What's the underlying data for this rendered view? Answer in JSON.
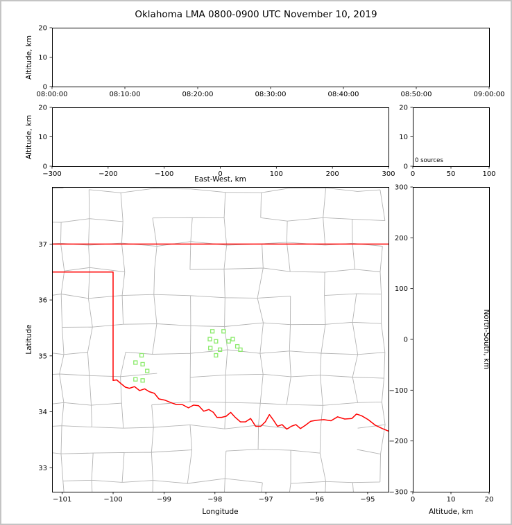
{
  "figure": {
    "title": "Oklahoma LMA 0800-0900 UTC November 10, 2019",
    "background": "#ffffff",
    "frame_color": "#c4c4c4"
  },
  "colors": {
    "axis": "#000000",
    "tick_text": "#000000",
    "county_line": "#b4b4b4",
    "state_border": "#ff0000",
    "station_marker": "#8aea6a"
  },
  "chart_data": [
    {
      "id": "time-height-panel",
      "type": "scatter",
      "ylabel": "Altitude, km",
      "x_tick_labels": [
        "08:00:00",
        "08:10:00",
        "08:20:00",
        "08:30:00",
        "08:40:00",
        "08:50:00",
        "09:00:00"
      ],
      "ylim": [
        0,
        20
      ],
      "y_ticks": [
        0,
        10,
        20
      ],
      "points": []
    },
    {
      "id": "east-west-height-panel",
      "type": "scatter",
      "xlabel": "East-West, km",
      "ylabel": "Altitude, km",
      "xlim": [
        -300,
        300
      ],
      "x_ticks": [
        -300,
        -200,
        -100,
        0,
        100,
        200,
        300
      ],
      "ylim": [
        0,
        20
      ],
      "y_ticks": [
        0,
        10,
        20
      ],
      "points": []
    },
    {
      "id": "altitude-histogram-panel",
      "type": "line",
      "annotation": "0 sources",
      "xlim": [
        0,
        100
      ],
      "x_ticks": [
        0,
        50,
        100
      ],
      "ylim": [
        0,
        20
      ],
      "y_ticks": [
        0,
        10,
        20
      ],
      "points": []
    },
    {
      "id": "plan-view-map",
      "type": "scatter",
      "xlabel": "Longitude",
      "ylabel": "Latitude",
      "xlim": [
        -101.2,
        -94.59
      ],
      "x_ticks": [
        -101,
        -100,
        -99,
        -98,
        -97,
        -96,
        -95
      ],
      "ylim": [
        32.57,
        38.02
      ],
      "y_ticks": [
        33,
        34,
        35,
        36,
        37
      ],
      "station_markers": [
        [
          -98.05,
          35.44
        ],
        [
          -97.83,
          35.44
        ],
        [
          -98.1,
          35.3
        ],
        [
          -97.98,
          35.26
        ],
        [
          -97.73,
          35.26
        ],
        [
          -97.65,
          35.3
        ],
        [
          -98.09,
          35.14
        ],
        [
          -97.9,
          35.11
        ],
        [
          -97.98,
          35.01
        ],
        [
          -97.56,
          35.17
        ],
        [
          -97.5,
          35.11
        ],
        [
          -99.44,
          35.01
        ],
        [
          -99.56,
          34.88
        ],
        [
          -99.42,
          34.85
        ],
        [
          -99.33,
          34.73
        ],
        [
          -99.56,
          34.58
        ],
        [
          -99.42,
          34.56
        ]
      ],
      "oklahoma_border": {
        "kansas_border_lat": 37.0,
        "panhandle_south_lat": 36.5,
        "texas_meridian_lon": -100.0,
        "meridian_lat_range": [
          34.56,
          36.5
        ],
        "red_river_lon_lat": [
          [
            -100.0,
            34.56
          ],
          [
            -99.93,
            34.57
          ],
          [
            -99.84,
            34.5
          ],
          [
            -99.76,
            34.44
          ],
          [
            -99.68,
            34.42
          ],
          [
            -99.58,
            34.45
          ],
          [
            -99.48,
            34.38
          ],
          [
            -99.38,
            34.41
          ],
          [
            -99.29,
            34.36
          ],
          [
            -99.19,
            34.33
          ],
          [
            -99.1,
            34.23
          ],
          [
            -98.99,
            34.21
          ],
          [
            -98.88,
            34.17
          ],
          [
            -98.76,
            34.13
          ],
          [
            -98.64,
            34.13
          ],
          [
            -98.52,
            34.07
          ],
          [
            -98.42,
            34.12
          ],
          [
            -98.32,
            34.11
          ],
          [
            -98.22,
            34.01
          ],
          [
            -98.12,
            34.04
          ],
          [
            -98.03,
            33.99
          ],
          [
            -97.96,
            33.9
          ],
          [
            -97.87,
            33.9
          ],
          [
            -97.78,
            33.92
          ],
          [
            -97.69,
            33.99
          ],
          [
            -97.6,
            33.9
          ],
          [
            -97.5,
            33.82
          ],
          [
            -97.4,
            33.82
          ],
          [
            -97.3,
            33.88
          ],
          [
            -97.2,
            33.74
          ],
          [
            -97.1,
            33.74
          ],
          [
            -97.01,
            33.82
          ],
          [
            -96.93,
            33.95
          ],
          [
            -96.85,
            33.85
          ],
          [
            -96.77,
            33.74
          ],
          [
            -96.68,
            33.77
          ],
          [
            -96.59,
            33.69
          ],
          [
            -96.5,
            33.74
          ],
          [
            -96.41,
            33.77
          ],
          [
            -96.32,
            33.7
          ],
          [
            -96.22,
            33.76
          ],
          [
            -96.12,
            33.83
          ],
          [
            -96.0,
            33.85
          ],
          [
            -95.86,
            33.86
          ],
          [
            -95.72,
            33.84
          ],
          [
            -95.59,
            33.91
          ],
          [
            -95.45,
            33.87
          ],
          [
            -95.31,
            33.88
          ],
          [
            -95.22,
            33.96
          ],
          [
            -95.12,
            33.93
          ],
          [
            -94.99,
            33.86
          ],
          [
            -94.85,
            33.76
          ],
          [
            -94.71,
            33.7
          ],
          [
            -94.55,
            33.64
          ]
        ]
      }
    },
    {
      "id": "north-south-height-panel",
      "type": "scatter",
      "xlabel": "Altitude, km",
      "ylabel": "North-South, km",
      "xlim": [
        0,
        20
      ],
      "x_ticks": [
        0,
        10,
        20
      ],
      "ylim": [
        -300,
        300
      ],
      "y_ticks": [
        -300,
        -200,
        -100,
        0,
        100,
        200,
        300
      ],
      "points": []
    }
  ]
}
